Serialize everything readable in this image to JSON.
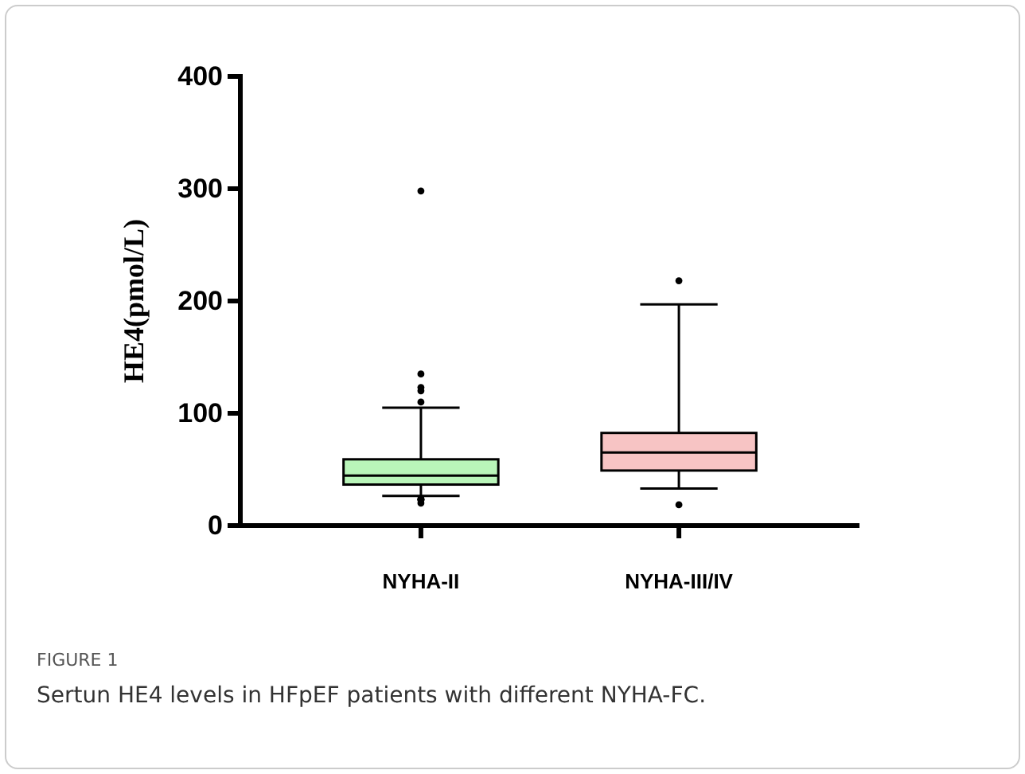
{
  "chart_data": {
    "type": "box",
    "ylabel": "HE4(pmol/L)",
    "categories": [
      "NYHA-II",
      "NYHA-III/IV"
    ],
    "boxes": [
      {
        "low": 26.5,
        "q1": 36.5,
        "median": 44.5,
        "q3": 59,
        "high": 105,
        "outliers": [
          298,
          135,
          123,
          120,
          110,
          24,
          23,
          20,
          23,
          23
        ]
      },
      {
        "low": 33,
        "q1": 49,
        "median": 65,
        "q3": 82.5,
        "high": 197,
        "outliers": [
          218,
          18.5
        ]
      }
    ],
    "colors": [
      "#b9f5b9",
      "#f7c4c4"
    ],
    "ylim": [
      0,
      400
    ],
    "yticks": [
      0,
      100,
      200,
      300,
      400
    ],
    "annotations": [
      "FIGURE 1",
      "Sertun HE4 levels in HFpEF patients with different NYHA-FC."
    ]
  }
}
